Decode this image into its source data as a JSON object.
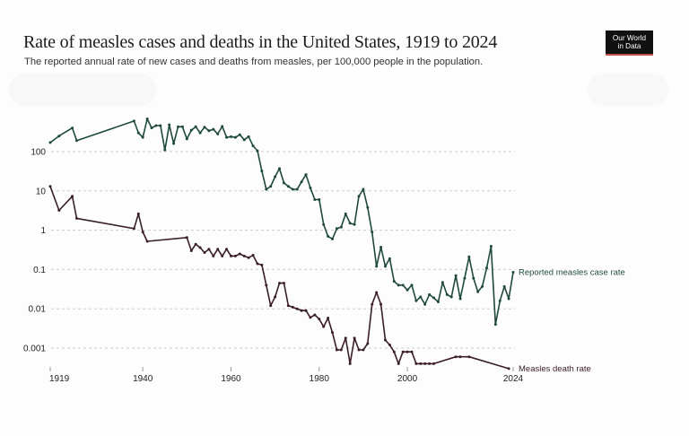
{
  "header": {
    "title": "Rate of measles cases and deaths in the United States, 1919 to 2024",
    "subtitle": "The reported annual rate of new cases and deaths from measles, per 100,000 people in the population.",
    "logo_line1": "Our World",
    "logo_line2": "in Data"
  },
  "colors": {
    "cases": "#1f4a3a",
    "deaths": "#3a1f24",
    "grid": "#cccccc",
    "logo_bg": "#111111",
    "logo_accent": "#c0504d"
  },
  "chart_data": {
    "type": "line",
    "title": "Rate of measles cases and deaths in the United States, 1919 to 2024",
    "subtitle": "The reported annual rate of new cases and deaths from measles, per 100,000 people in the population.",
    "xlabel": "",
    "ylabel": "",
    "yscale": "log",
    "ylim": [
      0.0003,
      800
    ],
    "xlim": [
      1919,
      2024
    ],
    "yticks": [
      100,
      10,
      1,
      0.1,
      0.01,
      0.001
    ],
    "ytick_labels": [
      "100",
      "10",
      "1",
      "0.1",
      "0.01",
      "0.001"
    ],
    "xticks": [
      1919,
      1940,
      1960,
      1980,
      2000,
      2024
    ],
    "xtick_labels": [
      "1919",
      "1940",
      "1960",
      "1980",
      "2000",
      "2024"
    ],
    "grid": true,
    "legend": "inline-right",
    "series": [
      {
        "name": "Reported measles case rate",
        "points": [
          [
            1919,
            170
          ],
          [
            1921,
            250
          ],
          [
            1924,
            400
          ],
          [
            1925,
            190
          ],
          [
            1938,
            600
          ],
          [
            1939,
            300
          ],
          [
            1940,
            230
          ],
          [
            1941,
            680
          ],
          [
            1942,
            400
          ],
          [
            1943,
            460
          ],
          [
            1944,
            460
          ],
          [
            1945,
            110
          ],
          [
            1946,
            480
          ],
          [
            1947,
            160
          ],
          [
            1948,
            430
          ],
          [
            1949,
            430
          ],
          [
            1950,
            210
          ],
          [
            1951,
            350
          ],
          [
            1952,
            430
          ],
          [
            1953,
            300
          ],
          [
            1954,
            420
          ],
          [
            1955,
            340
          ],
          [
            1956,
            370
          ],
          [
            1957,
            280
          ],
          [
            1958,
            440
          ],
          [
            1959,
            230
          ],
          [
            1960,
            240
          ],
          [
            1961,
            230
          ],
          [
            1962,
            270
          ],
          [
            1963,
            200
          ],
          [
            1964,
            240
          ],
          [
            1965,
            140
          ],
          [
            1966,
            105
          ],
          [
            1967,
            32
          ],
          [
            1968,
            11
          ],
          [
            1969,
            13
          ],
          [
            1970,
            23
          ],
          [
            1971,
            37
          ],
          [
            1972,
            16
          ],
          [
            1973,
            13
          ],
          [
            1974,
            11
          ],
          [
            1975,
            11
          ],
          [
            1976,
            17
          ],
          [
            1977,
            26
          ],
          [
            1978,
            12
          ],
          [
            1979,
            6
          ],
          [
            1980,
            6
          ],
          [
            1981,
            1.4
          ],
          [
            1982,
            0.7
          ],
          [
            1983,
            0.6
          ],
          [
            1984,
            1.1
          ],
          [
            1985,
            1.2
          ],
          [
            1986,
            2.6
          ],
          [
            1987,
            1.5
          ],
          [
            1988,
            1.4
          ],
          [
            1989,
            7.3
          ],
          [
            1990,
            11
          ],
          [
            1991,
            3.8
          ],
          [
            1992,
            0.9
          ],
          [
            1993,
            0.12
          ],
          [
            1994,
            0.37
          ],
          [
            1995,
            0.12
          ],
          [
            1996,
            0.19
          ],
          [
            1997,
            0.05
          ],
          [
            1998,
            0.04
          ],
          [
            1999,
            0.04
          ],
          [
            2000,
            0.03
          ],
          [
            2001,
            0.04
          ],
          [
            2002,
            0.016
          ],
          [
            2003,
            0.02
          ],
          [
            2004,
            0.013
          ],
          [
            2005,
            0.023
          ],
          [
            2006,
            0.019
          ],
          [
            2007,
            0.015
          ],
          [
            2008,
            0.047
          ],
          [
            2009,
            0.023
          ],
          [
            2010,
            0.02
          ],
          [
            2011,
            0.07
          ],
          [
            2012,
            0.018
          ],
          [
            2013,
            0.06
          ],
          [
            2014,
            0.21
          ],
          [
            2015,
            0.06
          ],
          [
            2016,
            0.027
          ],
          [
            2017,
            0.037
          ],
          [
            2018,
            0.11
          ],
          [
            2019,
            0.39
          ],
          [
            2020,
            0.004
          ],
          [
            2021,
            0.016
          ],
          [
            2022,
            0.037
          ],
          [
            2023,
            0.018
          ],
          [
            2024,
            0.085
          ]
        ]
      },
      {
        "name": "Measles death rate",
        "points": [
          [
            1919,
            13
          ],
          [
            1921,
            3.2
          ],
          [
            1924,
            7.3
          ],
          [
            1925,
            2
          ],
          [
            1938,
            1.1
          ],
          [
            1939,
            2.6
          ],
          [
            1940,
            0.9
          ],
          [
            1941,
            0.52
          ],
          [
            1950,
            0.65
          ],
          [
            1951,
            0.3
          ],
          [
            1952,
            0.44
          ],
          [
            1953,
            0.36
          ],
          [
            1954,
            0.27
          ],
          [
            1955,
            0.33
          ],
          [
            1956,
            0.22
          ],
          [
            1957,
            0.33
          ],
          [
            1958,
            0.22
          ],
          [
            1959,
            0.33
          ],
          [
            1960,
            0.22
          ],
          [
            1961,
            0.22
          ],
          [
            1962,
            0.25
          ],
          [
            1963,
            0.22
          ],
          [
            1964,
            0.2
          ],
          [
            1965,
            0.23
          ],
          [
            1966,
            0.14
          ],
          [
            1967,
            0.13
          ],
          [
            1968,
            0.04
          ],
          [
            1969,
            0.012
          ],
          [
            1970,
            0.02
          ],
          [
            1971,
            0.045
          ],
          [
            1972,
            0.045
          ],
          [
            1973,
            0.012
          ],
          [
            1974,
            0.011
          ],
          [
            1975,
            0.01
          ],
          [
            1976,
            0.009
          ],
          [
            1977,
            0.009
          ],
          [
            1978,
            0.006
          ],
          [
            1979,
            0.007
          ],
          [
            1980,
            0.0055
          ],
          [
            1981,
            0.0035
          ],
          [
            1982,
            0.0058
          ],
          [
            1983,
            0.0025
          ],
          [
            1984,
            0.0009
          ],
          [
            1985,
            0.0009
          ],
          [
            1986,
            0.0018
          ],
          [
            1987,
            0.0004
          ],
          [
            1988,
            0.0018
          ],
          [
            1989,
            0.0009
          ],
          [
            1990,
            0.0009
          ],
          [
            1991,
            0.0013
          ],
          [
            1992,
            0.013
          ],
          [
            1993,
            0.026
          ],
          [
            1994,
            0.013
          ],
          [
            1995,
            0.0016
          ],
          [
            1996,
            0.0012
          ],
          [
            1997,
            0.0008
          ],
          [
            1998,
            0.0004
          ],
          [
            1999,
            0.0008
          ],
          [
            2000,
            0.0008
          ],
          [
            2001,
            0.0008
          ],
          [
            2002,
            0.0004
          ],
          [
            2003,
            0.0004
          ],
          [
            2004,
            0.0004
          ],
          [
            2005,
            0.0004
          ],
          [
            2006,
            0.0004
          ],
          [
            2011,
            0.0006
          ],
          [
            2012,
            0.0006
          ],
          [
            2014,
            0.0006
          ],
          [
            2023,
            0.0003
          ]
        ]
      }
    ]
  }
}
